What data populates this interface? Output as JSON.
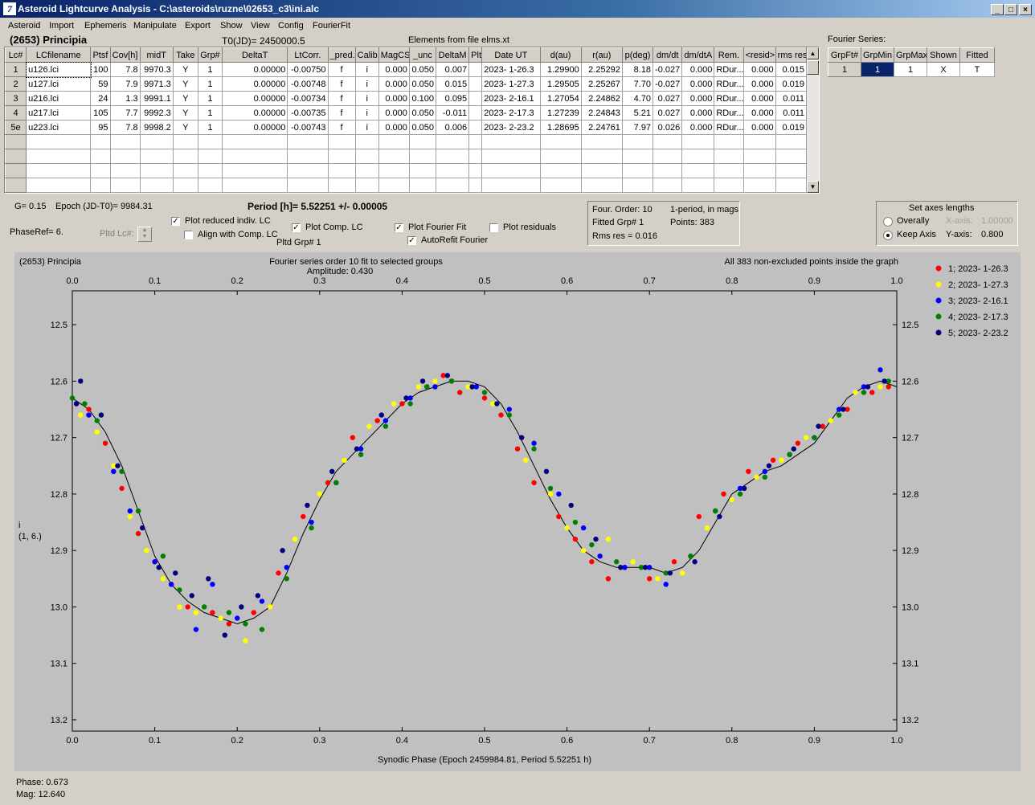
{
  "window": {
    "title": "Asteroid Lightcurve Analysis - C:\\asteroids\\ruzne\\02653_c3\\ini.alc",
    "icon_glyph": "7"
  },
  "menu": [
    "Asteroid",
    "Import",
    "Ephemeris",
    "Manipulate",
    "Export",
    "Show",
    "View",
    "Config",
    "FourierFit"
  ],
  "header": {
    "asteroid": "(2653) Principia",
    "t0": "T0(JD)= 2450000.5",
    "elements": "Elements from file elms.xt"
  },
  "lc_table": {
    "columns": [
      "Lc#",
      "LCfilename",
      "Ptsf",
      "Cov[h]",
      "midT",
      "Take",
      "Grp#",
      "DeltaT",
      "LtCorr.",
      "_pred.",
      "Calib.",
      "MagCS",
      "_unc",
      "DeltaM",
      "Plt",
      "Date UT",
      "d(au)",
      "r(au)",
      "p(deg)",
      "dm/dt",
      "dm/dtA",
      "Rem.",
      "<resid>",
      "rms res"
    ],
    "rows": [
      [
        "1",
        "u126.lci",
        "100",
        "7.8",
        "9970.3",
        "Y",
        "1",
        "0.00000",
        "-0.00750",
        "f",
        "i",
        "0.000",
        "0.050",
        "0.007",
        "",
        "2023- 1-26.3",
        "1.29900",
        "2.25292",
        "8.18",
        "-0.027",
        "0.000",
        "RDur...",
        "0.000",
        "0.015"
      ],
      [
        "2",
        "u127.lci",
        "59",
        "7.9",
        "9971.3",
        "Y",
        "1",
        "0.00000",
        "-0.00748",
        "f",
        "i",
        "0.000",
        "0.050",
        "0.015",
        "",
        "2023- 1-27.3",
        "1.29505",
        "2.25267",
        "7.70",
        "-0.027",
        "0.000",
        "RDur...",
        "0.000",
        "0.019"
      ],
      [
        "3",
        "u216.lci",
        "24",
        "1.3",
        "9991.1",
        "Y",
        "1",
        "0.00000",
        "-0.00734",
        "f",
        "i",
        "0.000",
        "0.100",
        "0.095",
        "",
        "2023- 2-16.1",
        "1.27054",
        "2.24862",
        "4.70",
        "0.027",
        "0.000",
        "RDur...",
        "0.000",
        "0.011"
      ],
      [
        "4",
        "u217.lci",
        "105",
        "7.7",
        "9992.3",
        "Y",
        "1",
        "0.00000",
        "-0.00735",
        "f",
        "i",
        "0.000",
        "0.050",
        "-0.011",
        "",
        "2023- 2-17.3",
        "1.27239",
        "2.24843",
        "5.21",
        "0.027",
        "0.000",
        "RDur...",
        "0.000",
        "0.011"
      ],
      [
        "5e",
        "u223.lci",
        "95",
        "7.8",
        "9998.2",
        "Y",
        "1",
        "0.00000",
        "-0.00743",
        "f",
        "i",
        "0.000",
        "0.050",
        "0.006",
        "",
        "2023- 2-23.2",
        "1.28695",
        "2.24761",
        "7.97",
        "0.026",
        "0.000",
        "RDur...",
        "0.000",
        "0.019"
      ]
    ],
    "empty_rows": 4
  },
  "fourier_series": {
    "label": "Fourier Series:",
    "columns": [
      "GrpFt#",
      "GrpMin",
      "GrpMax",
      "Shown",
      "Fitted"
    ],
    "row": [
      "1",
      "1",
      "1",
      "X",
      "T"
    ]
  },
  "info": {
    "g": "G= 0.15",
    "epoch": "Epoch (JD-T0)= 9984.31",
    "period": "Period [h]= 5.52251 +/- 0.00005",
    "phaseref": "PhaseRef= 6.",
    "pltd_lc": "Pltd Lc#:",
    "pltd_grp": "Pltd Grp#  1"
  },
  "options": {
    "plot_reduced": "Plot reduced indiv. LC",
    "align_comp": "Align with Comp. LC",
    "plot_comp": "Plot Comp. LC",
    "plot_fourier": "Plot Fourier Fit",
    "autorefit": "AutoRefit Fourier",
    "plot_residuals": "Plot residuals"
  },
  "fit_box": {
    "order": "Four. Order: 10",
    "mode": "1-period, in mags",
    "fitted": "Fitted Grp# 1",
    "points": "Points: 383",
    "rms": "Rms res     = 0.016"
  },
  "axes_box": {
    "title": "Set axes lengths",
    "overally": "Overally",
    "keep_axis": "Keep Axis",
    "x_label": "X-axis:",
    "x_value": "1.00000",
    "y_label": "Y-axis:",
    "y_value": "0.800"
  },
  "plot": {
    "title_left": "(2653) Principia",
    "title_center": "Fourier series order 10 fit to selected groups",
    "amplitude": "Amplitude: 0.430",
    "title_right": "All 383 non-excluded points inside the graph",
    "ylabel_1": "i",
    "ylabel_2": "(1, 6.)",
    "xlabel": "Synodic Phase (Epoch 2459984.81, Period 5.52251 h)",
    "bg_color": "#c0c0c0"
  },
  "chart_data": {
    "type": "scatter",
    "xlim": [
      0.0,
      1.0
    ],
    "ylim": [
      12.44,
      13.22
    ],
    "y_inverted": true,
    "x_ticks": [
      0.0,
      0.1,
      0.2,
      0.3,
      0.4,
      0.5,
      0.6,
      0.7,
      0.8,
      0.9,
      1.0
    ],
    "y_ticks": [
      12.5,
      12.6,
      12.7,
      12.8,
      12.9,
      13.0,
      13.1,
      13.2
    ],
    "legend_position": "right",
    "series": [
      {
        "name": "1; 2023- 1-26.3",
        "color": "#ff0000",
        "x": [
          0.02,
          0.04,
          0.06,
          0.08,
          0.1,
          0.12,
          0.14,
          0.17,
          0.19,
          0.22,
          0.25,
          0.28,
          0.31,
          0.34,
          0.37,
          0.4,
          0.43,
          0.45,
          0.47,
          0.5,
          0.52,
          0.54,
          0.56,
          0.59,
          0.61,
          0.63,
          0.65,
          0.67,
          0.7,
          0.73,
          0.76,
          0.79,
          0.82,
          0.85,
          0.88,
          0.91,
          0.94,
          0.97,
          0.99
        ],
        "y": [
          12.65,
          12.71,
          12.79,
          12.87,
          12.92,
          12.96,
          13.0,
          13.01,
          13.03,
          13.01,
          12.94,
          12.84,
          12.78,
          12.7,
          12.67,
          12.64,
          12.61,
          12.59,
          12.62,
          12.63,
          12.66,
          12.72,
          12.78,
          12.84,
          12.88,
          12.92,
          12.95,
          12.93,
          12.95,
          12.92,
          12.84,
          12.8,
          12.76,
          12.74,
          12.71,
          12.68,
          12.65,
          12.62,
          12.61
        ]
      },
      {
        "name": "2; 2023- 1-27.3",
        "color": "#ffff00",
        "x": [
          0.01,
          0.03,
          0.05,
          0.07,
          0.09,
          0.11,
          0.13,
          0.15,
          0.18,
          0.21,
          0.24,
          0.27,
          0.3,
          0.33,
          0.36,
          0.39,
          0.42,
          0.44,
          0.48,
          0.51,
          0.55,
          0.58,
          0.6,
          0.62,
          0.65,
          0.68,
          0.71,
          0.74,
          0.77,
          0.8,
          0.83,
          0.86,
          0.89,
          0.92,
          0.95,
          0.98
        ],
        "y": [
          12.66,
          12.69,
          12.75,
          12.84,
          12.9,
          12.95,
          13.0,
          13.01,
          13.02,
          13.06,
          13.0,
          12.88,
          12.8,
          12.74,
          12.68,
          12.64,
          12.61,
          12.6,
          12.61,
          12.64,
          12.74,
          12.8,
          12.86,
          12.9,
          12.88,
          12.92,
          12.95,
          12.94,
          12.86,
          12.81,
          12.77,
          12.74,
          12.7,
          12.67,
          12.62,
          12.61
        ]
      },
      {
        "name": "3; 2023- 2-16.1",
        "color": "#0000ff",
        "x": [
          0.005,
          0.02,
          0.05,
          0.07,
          0.1,
          0.12,
          0.15,
          0.17,
          0.2,
          0.23,
          0.26,
          0.29,
          0.32,
          0.35,
          0.38,
          0.41,
          0.44,
          0.46,
          0.49,
          0.53,
          0.56,
          0.59,
          0.62,
          0.64,
          0.67,
          0.7,
          0.72,
          0.75,
          0.78,
          0.81,
          0.84,
          0.87,
          0.9,
          0.93,
          0.96,
          0.98
        ],
        "y": [
          12.64,
          12.66,
          12.76,
          12.83,
          12.92,
          12.96,
          13.04,
          12.96,
          13.02,
          12.99,
          12.93,
          12.85,
          12.78,
          12.72,
          12.67,
          12.63,
          12.61,
          12.6,
          12.61,
          12.65,
          12.71,
          12.8,
          12.86,
          12.91,
          12.93,
          12.93,
          12.96,
          12.91,
          12.83,
          12.79,
          12.76,
          12.73,
          12.7,
          12.65,
          12.61,
          12.58
        ]
      },
      {
        "name": "4; 2023- 2-17.3",
        "color": "#008000",
        "x": [
          0.0,
          0.015,
          0.03,
          0.06,
          0.08,
          0.11,
          0.13,
          0.16,
          0.19,
          0.21,
          0.23,
          0.26,
          0.29,
          0.32,
          0.35,
          0.38,
          0.41,
          0.43,
          0.46,
          0.5,
          0.53,
          0.56,
          0.58,
          0.61,
          0.63,
          0.66,
          0.69,
          0.72,
          0.75,
          0.78,
          0.81,
          0.84,
          0.87,
          0.9,
          0.93,
          0.96,
          0.99
        ],
        "y": [
          12.63,
          12.64,
          12.67,
          12.76,
          12.83,
          12.91,
          12.97,
          13.0,
          13.01,
          13.03,
          13.04,
          12.95,
          12.86,
          12.78,
          12.73,
          12.68,
          12.64,
          12.61,
          12.6,
          12.62,
          12.66,
          12.72,
          12.79,
          12.85,
          12.89,
          12.92,
          12.93,
          12.94,
          12.91,
          12.83,
          12.8,
          12.77,
          12.73,
          12.7,
          12.66,
          12.62,
          12.6
        ]
      },
      {
        "name": "5; 2023- 2-23.2",
        "color": "#000080",
        "x": [
          0.005,
          0.01,
          0.035,
          0.055,
          0.085,
          0.105,
          0.125,
          0.145,
          0.165,
          0.185,
          0.205,
          0.225,
          0.255,
          0.285,
          0.315,
          0.345,
          0.375,
          0.405,
          0.425,
          0.455,
          0.485,
          0.515,
          0.545,
          0.575,
          0.605,
          0.635,
          0.665,
          0.695,
          0.725,
          0.755,
          0.785,
          0.815,
          0.845,
          0.875,
          0.905,
          0.935,
          0.965,
          0.985
        ],
        "y": [
          12.64,
          12.6,
          12.66,
          12.75,
          12.86,
          12.93,
          12.94,
          12.98,
          12.95,
          13.05,
          13.0,
          12.98,
          12.9,
          12.82,
          12.76,
          12.72,
          12.66,
          12.63,
          12.6,
          12.59,
          12.61,
          12.64,
          12.7,
          12.76,
          12.82,
          12.88,
          12.93,
          12.93,
          12.94,
          12.92,
          12.84,
          12.79,
          12.75,
          12.72,
          12.68,
          12.65,
          12.61,
          12.6
        ]
      }
    ],
    "fit_curve": {
      "x": [
        0.0,
        0.02,
        0.04,
        0.06,
        0.08,
        0.1,
        0.12,
        0.14,
        0.16,
        0.18,
        0.2,
        0.22,
        0.24,
        0.26,
        0.28,
        0.3,
        0.32,
        0.34,
        0.36,
        0.38,
        0.4,
        0.42,
        0.44,
        0.46,
        0.48,
        0.5,
        0.52,
        0.54,
        0.56,
        0.58,
        0.6,
        0.62,
        0.64,
        0.66,
        0.68,
        0.7,
        0.72,
        0.74,
        0.76,
        0.78,
        0.8,
        0.82,
        0.84,
        0.86,
        0.88,
        0.9,
        0.92,
        0.94,
        0.96,
        0.98,
        1.0
      ],
      "y": [
        12.63,
        12.65,
        12.69,
        12.75,
        12.83,
        12.91,
        12.96,
        12.99,
        13.01,
        13.02,
        13.03,
        13.02,
        13.0,
        12.94,
        12.87,
        12.81,
        12.76,
        12.73,
        12.7,
        12.67,
        12.64,
        12.62,
        12.61,
        12.6,
        12.6,
        12.61,
        12.64,
        12.69,
        12.75,
        12.81,
        12.86,
        12.9,
        12.92,
        12.93,
        12.93,
        12.93,
        12.94,
        12.93,
        12.9,
        12.85,
        12.8,
        12.78,
        12.76,
        12.75,
        12.73,
        12.71,
        12.67,
        12.63,
        12.61,
        12.6,
        12.61
      ]
    }
  },
  "status": {
    "phase": "Phase:  0.673",
    "mag": "Mag:   12.640"
  }
}
